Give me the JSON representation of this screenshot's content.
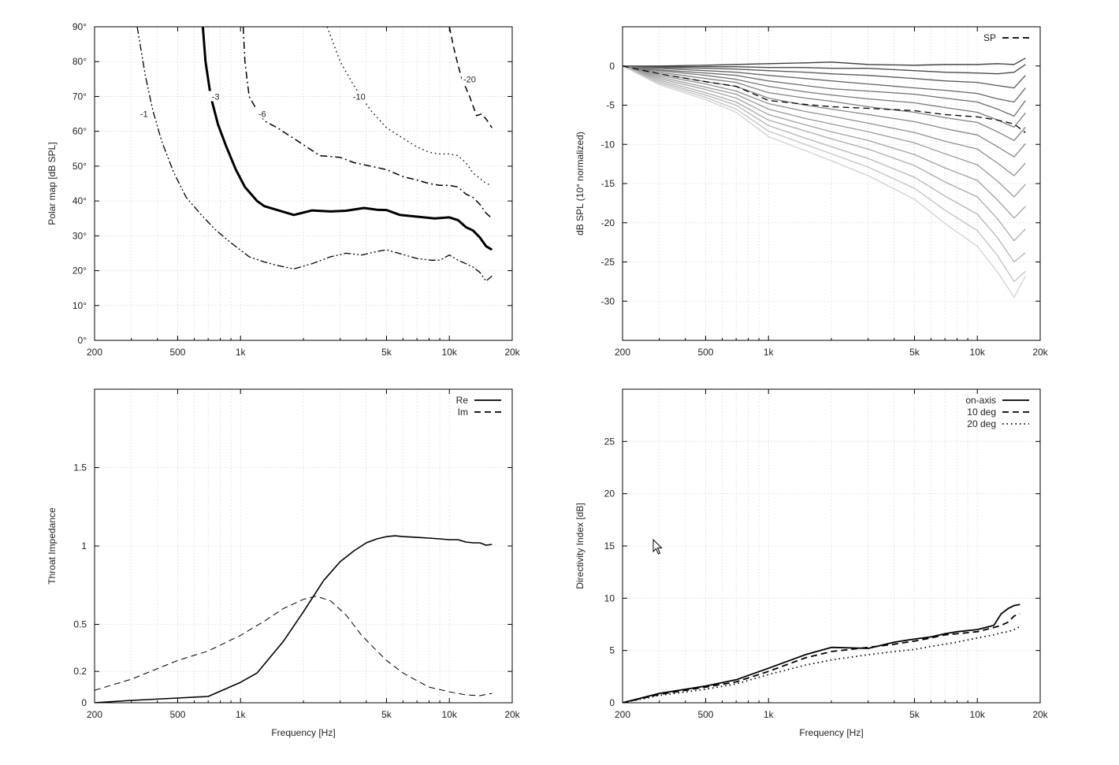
{
  "chart_data": [
    {
      "type": "contour",
      "panel": "top-left",
      "title": "",
      "xlabel": "",
      "ylabel": "Polar map [dB SPL]",
      "x_scale": "log",
      "xlim": [
        200,
        20000
      ],
      "ylim": [
        0,
        90
      ],
      "x_ticks": [
        "200",
        "500",
        "1k",
        "5k",
        "10k",
        "20k"
      ],
      "x_tick_values": [
        200,
        500,
        1000,
        5000,
        10000,
        20000
      ],
      "y_ticks": [
        "0°",
        "10°",
        "20°",
        "30°",
        "40°",
        "50°",
        "60°",
        "70°",
        "80°",
        "90°"
      ],
      "y_tick_values": [
        0,
        10,
        20,
        30,
        40,
        50,
        60,
        70,
        80,
        90
      ],
      "grid": true,
      "series": [
        {
          "name": "-1",
          "label_at": [
            345,
            65
          ],
          "style": "dash-dot-dot",
          "color": "#000000",
          "width": 1.3,
          "x": [
            320,
            350,
            380,
            420,
            480,
            550,
            650,
            750,
            900,
            1100,
            1300,
            1500,
            1800,
            2200,
            2700,
            3200,
            3800,
            4500,
            5000,
            5700,
            7000,
            8200,
            9000,
            10000,
            11000,
            12000,
            13000,
            14000,
            15000,
            16000
          ],
          "y": [
            90,
            76,
            66,
            57,
            48,
            41,
            36,
            32,
            28,
            24,
            22.5,
            21.5,
            20.5,
            22,
            24,
            25,
            24.5,
            25.5,
            26,
            25,
            23.5,
            23,
            23,
            24.5,
            23,
            22,
            21,
            19.5,
            17,
            18.5
          ]
        },
        {
          "name": "-3",
          "label_at": [
            760,
            70
          ],
          "style": "solid",
          "color": "#000000",
          "width": 3,
          "x": [
            660,
            680,
            720,
            780,
            850,
            950,
            1050,
            1200,
            1300,
            1800,
            2200,
            2700,
            3200,
            3900,
            4500,
            5000,
            5800,
            7000,
            8500,
            10000,
            11000,
            12000,
            13000,
            14000,
            15000,
            16000
          ],
          "y": [
            90,
            80,
            70,
            62,
            56,
            49,
            44,
            40,
            38.5,
            36,
            37.3,
            37,
            37.2,
            38,
            37.5,
            37.4,
            36,
            35.5,
            35,
            35.3,
            34.5,
            32.5,
            31.5,
            29.5,
            27,
            26
          ]
        },
        {
          "name": "-6",
          "label_at": [
            1270,
            65
          ],
          "style": "dash-dot",
          "color": "#000000",
          "width": 1.5,
          "x": [
            1030,
            1050,
            1100,
            1200,
            1300,
            1500,
            1900,
            2400,
            3000,
            3500,
            4200,
            5000,
            6000,
            7000,
            8000,
            9000,
            10000,
            11000,
            12000,
            13000,
            14000,
            15000,
            16000
          ],
          "y": [
            90,
            80,
            70,
            66,
            63,
            61,
            57,
            53,
            52.5,
            51,
            50,
            49,
            47,
            46,
            45,
            44.5,
            44.5,
            44,
            42,
            41,
            39,
            36.5,
            35
          ]
        },
        {
          "name": "-10",
          "label_at": [
            3700,
            70
          ],
          "style": "dotted",
          "color": "#000000",
          "width": 1.4,
          "x": [
            2600,
            3000,
            3500,
            4200,
            5000,
            6000,
            7000,
            8000,
            9000,
            10000,
            11000,
            12000,
            13000,
            14000,
            15000,
            16000
          ],
          "y": [
            90,
            80,
            73,
            66,
            61,
            58,
            55.5,
            54,
            53.5,
            53.5,
            53,
            51,
            48,
            46.5,
            45,
            44.5
          ]
        },
        {
          "name": "-20",
          "label_at": [
            12500,
            75
          ],
          "style": "dashed",
          "color": "#000000",
          "width": 1.5,
          "x": [
            10000,
            10500,
            11000,
            11500,
            12500,
            13500,
            14300,
            15000,
            16000
          ],
          "y": [
            90,
            84,
            79,
            75,
            70,
            64.5,
            65,
            63.5,
            61
          ]
        }
      ]
    },
    {
      "type": "line",
      "panel": "top-right",
      "title": "",
      "xlabel": "",
      "ylabel": "dB SPL (10° normalized)",
      "x_scale": "log",
      "xlim": [
        200,
        20000
      ],
      "ylim": [
        -35,
        5
      ],
      "x_ticks": [
        "200",
        "500",
        "1k",
        "5k",
        "10k",
        "20k"
      ],
      "x_tick_values": [
        200,
        500,
        1000,
        5000,
        10000,
        20000
      ],
      "y_ticks": [
        "0",
        "-5",
        "-10",
        "-15",
        "-20",
        "-25",
        "-30"
      ],
      "y_tick_values": [
        0,
        -5,
        -10,
        -15,
        -20,
        -25,
        -30
      ],
      "grid": true,
      "legend": {
        "position": "top-right",
        "entries": [
          {
            "label": "SP",
            "style": "dashed"
          }
        ]
      },
      "x": [
        200,
        300,
        500,
        700,
        1000,
        1500,
        2000,
        3000,
        5000,
        7000,
        10000,
        12500,
        15000,
        17000
      ],
      "series": [
        {
          "name": "",
          "values": [
            0,
            0,
            0.1,
            0.2,
            0.3,
            0.4,
            0.5,
            0.2,
            0.1,
            0.2,
            0.2,
            0.3,
            0.2,
            1.0
          ],
          "color": "#3a3a3a",
          "style": "solid"
        },
        {
          "name": "",
          "values": [
            0,
            -0.1,
            -0.1,
            -0.1,
            -0.2,
            -0.2,
            -0.3,
            -0.3,
            -0.6,
            -0.8,
            -0.9,
            -1.0,
            -0.8,
            0.2
          ],
          "color": "#4a4a4a",
          "style": "solid"
        },
        {
          "name": "",
          "values": [
            0,
            -0.2,
            -0.3,
            -0.4,
            -0.6,
            -0.8,
            -1.0,
            -1.2,
            -1.6,
            -1.9,
            -2.1,
            -2.5,
            -2.8,
            -1.2
          ],
          "color": "#5a5a5a",
          "style": "solid"
        },
        {
          "name": "",
          "values": [
            0,
            -0.3,
            -0.6,
            -0.8,
            -1.2,
            -1.6,
            -1.9,
            -2.3,
            -2.8,
            -3.1,
            -3.5,
            -4.2,
            -4.6,
            -2.8
          ],
          "color": "#666666",
          "style": "solid"
        },
        {
          "name": "",
          "values": [
            0,
            -0.5,
            -0.9,
            -1.2,
            -1.9,
            -2.5,
            -2.9,
            -3.2,
            -3.6,
            -4.1,
            -4.6,
            -5.5,
            -6.4,
            -4.4
          ],
          "color": "#6f6f6f",
          "style": "solid"
        },
        {
          "name": "",
          "values": [
            0,
            -0.6,
            -1.2,
            -1.7,
            -2.6,
            -3.3,
            -3.7,
            -4.2,
            -4.7,
            -5.3,
            -5.9,
            -6.9,
            -7.8,
            -6.0
          ],
          "color": "#787878",
          "style": "solid"
        },
        {
          "name": "",
          "values": [
            0,
            -0.8,
            -1.6,
            -2.1,
            -3.4,
            -4.1,
            -4.5,
            -5.2,
            -5.9,
            -6.6,
            -7.2,
            -8.4,
            -9.5,
            -7.8
          ],
          "color": "#808080",
          "style": "solid"
        },
        {
          "name": "",
          "values": [
            0,
            -1.0,
            -2.0,
            -2.6,
            -4.1,
            -5.0,
            -5.5,
            -6.2,
            -7.1,
            -8.0,
            -8.8,
            -10.3,
            -11.6,
            -9.9
          ],
          "color": "#888888",
          "style": "solid"
        },
        {
          "name": "",
          "values": [
            0,
            -1.2,
            -2.3,
            -3.2,
            -4.8,
            -5.8,
            -6.4,
            -7.3,
            -8.5,
            -9.6,
            -10.6,
            -12.4,
            -14.0,
            -12.4
          ],
          "color": "#909090",
          "style": "solid"
        },
        {
          "name": "",
          "values": [
            0,
            -1.4,
            -2.7,
            -3.6,
            -5.5,
            -6.7,
            -7.4,
            -8.4,
            -9.8,
            -11.2,
            -12.6,
            -14.7,
            -16.7,
            -15.1
          ],
          "color": "#999999",
          "style": "solid"
        },
        {
          "name": "",
          "values": [
            0,
            -1.6,
            -3.0,
            -4.1,
            -6.2,
            -7.5,
            -8.4,
            -9.5,
            -11.3,
            -13.0,
            -14.6,
            -17.1,
            -19.4,
            -17.9
          ],
          "color": "#a2a2a2",
          "style": "solid"
        },
        {
          "name": "",
          "values": [
            0,
            -1.8,
            -3.4,
            -4.6,
            -6.9,
            -8.3,
            -9.3,
            -10.6,
            -12.7,
            -14.8,
            -16.7,
            -19.5,
            -22.3,
            -20.8
          ],
          "color": "#ababab",
          "style": "solid"
        },
        {
          "name": "",
          "values": [
            0,
            -2.0,
            -3.7,
            -5.0,
            -7.6,
            -9.2,
            -10.3,
            -11.8,
            -14.2,
            -16.6,
            -18.9,
            -21.9,
            -25.0,
            -23.8
          ],
          "color": "#b5b5b5",
          "style": "solid"
        },
        {
          "name": "",
          "values": [
            0,
            -2.2,
            -4.0,
            -5.5,
            -8.3,
            -10.0,
            -11.2,
            -12.9,
            -15.6,
            -18.4,
            -21.0,
            -24.2,
            -27.5,
            -26.2
          ],
          "color": "#c3c3c3",
          "style": "solid"
        },
        {
          "name": "",
          "values": [
            0,
            -2.4,
            -4.3,
            -5.9,
            -9.0,
            -10.8,
            -12.1,
            -14.0,
            -17.0,
            -20.1,
            -23.0,
            -26.3,
            -29.5,
            -26.8
          ],
          "color": "#d2d2d2",
          "style": "solid"
        },
        {
          "name": "SP",
          "values": [
            0,
            -1.0,
            -2.0,
            -2.6,
            -4.4,
            -4.9,
            -5.2,
            -5.4,
            -5.7,
            -6.2,
            -6.5,
            -6.9,
            -7.4,
            -8.5
          ],
          "color": "#000000",
          "style": "dashed"
        }
      ]
    },
    {
      "type": "line",
      "panel": "bottom-left",
      "title": "",
      "xlabel": "Frequency [Hz]",
      "ylabel": "Throat Impedance",
      "x_scale": "log",
      "xlim": [
        200,
        20000
      ],
      "ylim": [
        0,
        2
      ],
      "x_ticks": [
        "200",
        "500",
        "1k",
        "5k",
        "10k",
        "20k"
      ],
      "x_tick_values": [
        200,
        500,
        1000,
        5000,
        10000,
        20000
      ],
      "y_ticks": [
        "0",
        "0.2",
        "0.5",
        "1",
        "1.5"
      ],
      "y_tick_values": [
        0,
        0.2,
        0.5,
        1,
        1.5
      ],
      "grid": true,
      "legend": {
        "position": "top-right",
        "entries": [
          {
            "label": "Re",
            "style": "solid"
          },
          {
            "label": "Im",
            "style": "dashed"
          }
        ]
      },
      "series": [
        {
          "name": "Re",
          "style": "solid",
          "color": "#000000",
          "width": 1.6,
          "x": [
            200,
            300,
            500,
            700,
            1000,
            1200,
            1600,
            2000,
            2500,
            3000,
            3500,
            4000,
            4500,
            5000,
            5500,
            6000,
            7000,
            8000,
            9000,
            10000,
            11000,
            12000,
            13000,
            14000,
            15000,
            16000
          ],
          "y": [
            0,
            0.015,
            0.03,
            0.04,
            0.13,
            0.19,
            0.39,
            0.58,
            0.78,
            0.9,
            0.97,
            1.02,
            1.045,
            1.06,
            1.065,
            1.06,
            1.055,
            1.05,
            1.045,
            1.04,
            1.04,
            1.025,
            1.02,
            1.02,
            1.005,
            1.01
          ]
        },
        {
          "name": "Im",
          "style": "dashed",
          "color": "#000000",
          "width": 1,
          "x": [
            200,
            300,
            500,
            700,
            1000,
            1300,
            1600,
            2000,
            2300,
            2700,
            3200,
            3800,
            4500,
            5000,
            6000,
            7000,
            8000,
            10000,
            12000,
            14000,
            16000
          ],
          "y": [
            0.08,
            0.15,
            0.27,
            0.33,
            0.43,
            0.52,
            0.6,
            0.66,
            0.68,
            0.65,
            0.56,
            0.43,
            0.33,
            0.27,
            0.19,
            0.14,
            0.1,
            0.07,
            0.05,
            0.045,
            0.06
          ]
        }
      ]
    },
    {
      "type": "line",
      "panel": "bottom-right",
      "title": "",
      "xlabel": "Frequency [Hz]",
      "ylabel": "Directivity Index [dB]",
      "x_scale": "log",
      "xlim": [
        200,
        20000
      ],
      "ylim": [
        0,
        30
      ],
      "x_ticks": [
        "200",
        "500",
        "1k",
        "5k",
        "10k",
        "20k"
      ],
      "x_tick_values": [
        200,
        500,
        1000,
        5000,
        10000,
        20000
      ],
      "y_ticks": [
        "0",
        "5",
        "10",
        "15",
        "20",
        "25"
      ],
      "y_tick_values": [
        0,
        5,
        10,
        15,
        20,
        25
      ],
      "grid": true,
      "legend": {
        "position": "top-right",
        "entries": [
          {
            "label": "on-axis",
            "style": "solid"
          },
          {
            "label": "10 deg",
            "style": "dashed"
          },
          {
            "label": "20 deg",
            "style": "dotted"
          }
        ]
      },
      "x": [
        200,
        300,
        500,
        700,
        1000,
        1500,
        2000,
        3000,
        4000,
        5000,
        6000,
        7000,
        8000,
        10000,
        12000,
        13000,
        14000,
        15000,
        16000
      ],
      "series": [
        {
          "name": "on-axis",
          "style": "solid",
          "color": "#000000",
          "width": 1.8,
          "values": [
            0,
            0.9,
            1.6,
            2.2,
            3.3,
            4.6,
            5.3,
            5.2,
            5.8,
            6.1,
            6.3,
            6.6,
            6.8,
            7.0,
            7.4,
            8.5,
            9.0,
            9.3,
            9.4
          ]
        },
        {
          "name": "10 deg",
          "style": "dashed",
          "color": "#000000",
          "width": 1.8,
          "values": [
            0,
            0.8,
            1.5,
            2.0,
            3.0,
            4.3,
            4.9,
            5.3,
            5.6,
            5.9,
            6.2,
            6.5,
            6.6,
            6.8,
            7.2,
            7.4,
            7.7,
            8.3,
            8.5
          ]
        },
        {
          "name": "20 deg",
          "style": "dotted",
          "color": "#000000",
          "width": 1.8,
          "values": [
            0,
            0.7,
            1.3,
            1.8,
            2.7,
            3.6,
            4.1,
            4.6,
            4.9,
            5.1,
            5.4,
            5.6,
            5.8,
            6.2,
            6.5,
            6.7,
            6.8,
            7.0,
            7.3
          ]
        }
      ]
    }
  ]
}
